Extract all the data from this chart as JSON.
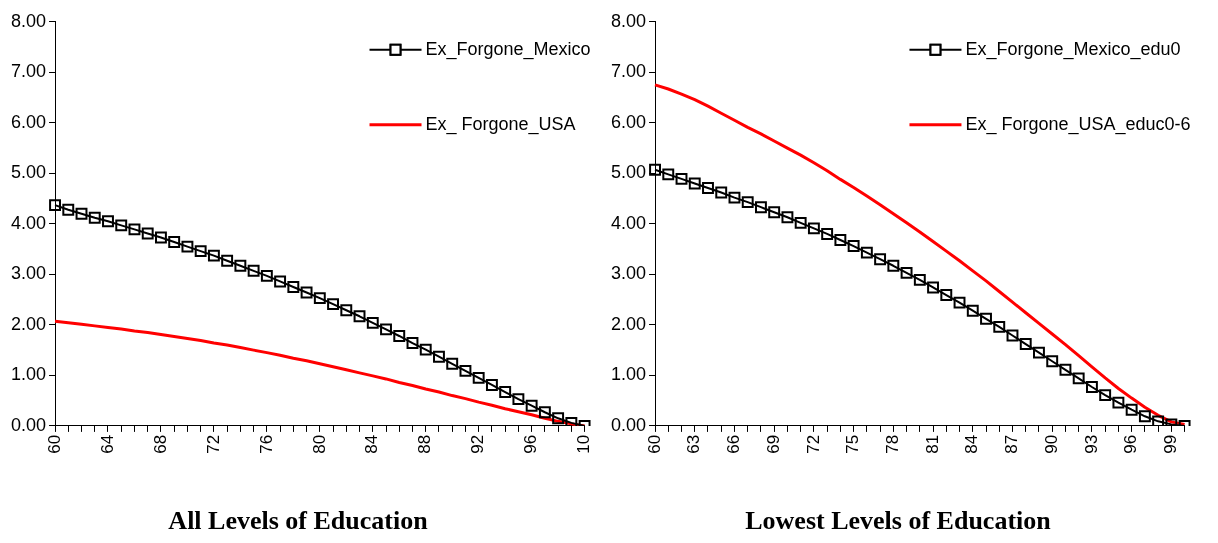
{
  "chart_data": [
    {
      "type": "line",
      "title": "All Levels of Education",
      "categories": [
        "60",
        null,
        null,
        null,
        "64",
        null,
        null,
        null,
        "68",
        null,
        null,
        null,
        "72",
        null,
        null,
        null,
        "76",
        null,
        null,
        null,
        "80",
        null,
        null,
        null,
        "84",
        null,
        null,
        null,
        "88",
        null,
        null,
        null,
        "92",
        null,
        null,
        null,
        "96",
        null,
        null,
        null,
        "10"
      ],
      "series": [
        {
          "name": "Ex_Forgone_Mexico",
          "color": "#000000",
          "marker": "square",
          "values": [
            4.37,
            4.28,
            4.2,
            4.12,
            4.05,
            3.97,
            3.89,
            3.81,
            3.73,
            3.64,
            3.55,
            3.46,
            3.37,
            3.27,
            3.17,
            3.07,
            2.97,
            2.86,
            2.75,
            2.64,
            2.53,
            2.41,
            2.29,
            2.17,
            2.04,
            1.91,
            1.78,
            1.64,
            1.51,
            1.37,
            1.23,
            1.09,
            0.95,
            0.81,
            0.67,
            0.53,
            0.4,
            0.27,
            0.15,
            0.06,
            0.0
          ]
        },
        {
          "name": "Ex_ Forgone_USA",
          "color": "#ff0000",
          "marker": "none",
          "values": [
            2.07,
            2.04,
            2.01,
            1.98,
            1.95,
            1.92,
            1.88,
            1.85,
            1.81,
            1.77,
            1.73,
            1.69,
            1.64,
            1.6,
            1.55,
            1.5,
            1.45,
            1.4,
            1.34,
            1.29,
            1.23,
            1.17,
            1.11,
            1.05,
            0.99,
            0.93,
            0.86,
            0.8,
            0.73,
            0.67,
            0.6,
            0.54,
            0.47,
            0.41,
            0.34,
            0.28,
            0.22,
            0.15,
            0.09,
            0.04,
            0.0
          ]
        }
      ],
      "ylim": [
        0,
        8
      ],
      "yticks": [
        {
          "value": 0,
          "label": "0.00"
        },
        {
          "value": 1,
          "label": "1.00"
        },
        {
          "value": 2,
          "label": "2.00"
        },
        {
          "value": 3,
          "label": "3.00"
        },
        {
          "value": 4,
          "label": "4.00"
        },
        {
          "value": 5,
          "label": "5.00"
        },
        {
          "value": 6,
          "label": "6.00"
        },
        {
          "value": 7,
          "label": "7.00"
        },
        {
          "value": 8,
          "label": "8.00"
        }
      ],
      "grid": false,
      "legend": "top right",
      "line_style": "solid"
    },
    {
      "type": "line",
      "title": "Lowest Levels of Education",
      "categories": [
        "60",
        null,
        null,
        "63",
        null,
        null,
        "66",
        null,
        null,
        "69",
        null,
        null,
        "72",
        null,
        null,
        "75",
        null,
        null,
        "78",
        null,
        null,
        "81",
        null,
        null,
        "84",
        null,
        null,
        "87",
        null,
        null,
        "90",
        null,
        null,
        "93",
        null,
        null,
        "96",
        null,
        null,
        "99",
        null
      ],
      "series": [
        {
          "name": "Ex_Forgone_Mexico_edu0",
          "color": "#000000",
          "marker": "square",
          "values": [
            5.07,
            4.98,
            4.89,
            4.8,
            4.71,
            4.62,
            4.52,
            4.43,
            4.33,
            4.23,
            4.13,
            4.02,
            3.91,
            3.8,
            3.68,
            3.56,
            3.43,
            3.3,
            3.17,
            3.03,
            2.89,
            2.74,
            2.59,
            2.44,
            2.28,
            2.12,
            1.96,
            1.79,
            1.62,
            1.45,
            1.28,
            1.11,
            0.94,
            0.77,
            0.61,
            0.46,
            0.32,
            0.19,
            0.09,
            0.03,
            0.0
          ]
        },
        {
          "name": "Ex_ Forgone_USA_educ0-6",
          "color": "#ff0000",
          "marker": "none",
          "values": [
            6.75,
            6.67,
            6.57,
            6.46,
            6.33,
            6.19,
            6.05,
            5.91,
            5.78,
            5.64,
            5.5,
            5.36,
            5.21,
            5.05,
            4.88,
            4.72,
            4.55,
            4.38,
            4.2,
            4.02,
            3.84,
            3.65,
            3.46,
            3.27,
            3.07,
            2.87,
            2.66,
            2.45,
            2.24,
            2.03,
            1.82,
            1.61,
            1.39,
            1.17,
            0.95,
            0.74,
            0.55,
            0.37,
            0.21,
            0.08,
            0.03
          ]
        }
      ],
      "ylim": [
        0,
        8
      ],
      "yticks": [
        {
          "value": 0,
          "label": "0.00"
        },
        {
          "value": 1,
          "label": "1.00"
        },
        {
          "value": 2,
          "label": "2.00"
        },
        {
          "value": 3,
          "label": "3.00"
        },
        {
          "value": 4,
          "label": "4.00"
        },
        {
          "value": 5,
          "label": "5.00"
        },
        {
          "value": 6,
          "label": "6.00"
        },
        {
          "value": 7,
          "label": "7.00"
        },
        {
          "value": 8,
          "label": "8.00"
        }
      ],
      "grid": false,
      "legend": "top right",
      "line_style": "solid"
    }
  ]
}
